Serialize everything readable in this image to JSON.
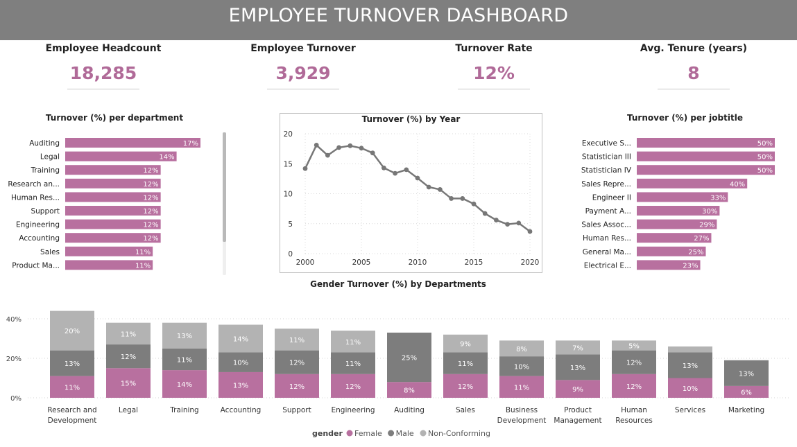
{
  "title": "EMPLOYEE TURNOVER DASHBOARD",
  "kpis": [
    {
      "label": "Employee Headcount",
      "value": "18,285"
    },
    {
      "label": "Employee Turnover",
      "value": "3,929"
    },
    {
      "label": "Turnover Rate",
      "value": "12%"
    },
    {
      "label": "Avg. Tenure (years)",
      "value": "8"
    }
  ],
  "colors": {
    "bar": "#b8709f",
    "female": "#b8709f",
    "male": "#7d7d7d",
    "nonconforming": "#b3b3b3",
    "line": "#777777",
    "kpi_value": "#b06a98",
    "banner": "#7f7f7f"
  },
  "chart_data": [
    {
      "type": "bar",
      "orientation": "horizontal",
      "title": "Turnover (%) per department",
      "categories": [
        "Auditing",
        "Legal",
        "Training",
        "Research an...",
        "Human Res...",
        "Support",
        "Engineering",
        "Accounting",
        "Sales",
        "Product Ma..."
      ],
      "values": [
        17,
        14,
        12,
        12,
        12,
        12,
        12,
        12,
        11,
        11
      ],
      "labels": [
        "17%",
        "14%",
        "12%",
        "12%",
        "12%",
        "12%",
        "12%",
        "12%",
        "11%",
        "11%"
      ]
    },
    {
      "type": "line",
      "title": "Turnover (%) by Year",
      "x": [
        2000,
        2001,
        2002,
        2003,
        2004,
        2005,
        2006,
        2007,
        2008,
        2009,
        2010,
        2011,
        2012,
        2013,
        2014,
        2015,
        2016,
        2017,
        2018,
        2019,
        2020
      ],
      "y": [
        14.2,
        18.1,
        16.4,
        17.7,
        18.0,
        17.6,
        16.8,
        14.3,
        13.4,
        14.0,
        12.6,
        11.1,
        10.7,
        9.2,
        9.2,
        8.3,
        6.7,
        5.6,
        4.9,
        5.1,
        3.7
      ],
      "xticks": [
        "2000",
        "2005",
        "2010",
        "2015",
        "2020"
      ],
      "yticks": [
        "0",
        "5",
        "10",
        "15",
        "20"
      ],
      "xlim": [
        2000,
        2020
      ],
      "ylim": [
        0,
        20
      ],
      "grid": true
    },
    {
      "type": "bar",
      "orientation": "horizontal",
      "title": "Turnover (%) per jobtitle",
      "categories": [
        "Executive S...",
        "Statistician III",
        "Statistician IV",
        "Sales Repre...",
        "Engineer II",
        "Payment A...",
        "Sales Assoc...",
        "Human Res...",
        "General Ma...",
        "Electrical E..."
      ],
      "values": [
        50,
        50,
        50,
        40,
        33,
        30,
        29,
        27,
        25,
        23
      ],
      "labels": [
        "50%",
        "50%",
        "50%",
        "40%",
        "33%",
        "30%",
        "29%",
        "27%",
        "25%",
        "23%"
      ]
    },
    {
      "type": "bar",
      "stacked": true,
      "title": "Gender Turnover (%) by Departments",
      "categories": [
        [
          "Research and",
          "Development"
        ],
        [
          "Legal"
        ],
        [
          "Training"
        ],
        [
          "Accounting"
        ],
        [
          "Support"
        ],
        [
          "Engineering"
        ],
        [
          "Auditing"
        ],
        [
          "Sales"
        ],
        [
          "Business",
          "Development"
        ],
        [
          "Product",
          "Management"
        ],
        [
          "Human",
          "Resources"
        ],
        [
          "Services"
        ],
        [
          "Marketing"
        ]
      ],
      "series": [
        {
          "name": "Female",
          "values": [
            11,
            15,
            14,
            13,
            12,
            12,
            8,
            12,
            11,
            9,
            12,
            10,
            6
          ],
          "labels": [
            "11%",
            "15%",
            "14%",
            "13%",
            "12%",
            "12%",
            "8%",
            "12%",
            "11%",
            "9%",
            "12%",
            "10%",
            "6%"
          ]
        },
        {
          "name": "Male",
          "values": [
            13,
            12,
            11,
            10,
            12,
            11,
            25,
            11,
            10,
            13,
            12,
            13,
            13
          ],
          "labels": [
            "13%",
            "12%",
            "11%",
            "10%",
            "12%",
            "11%",
            "25%",
            "11%",
            "10%",
            "13%",
            "12%",
            "13%",
            "13%"
          ]
        },
        {
          "name": "Non-Conforming",
          "values": [
            20,
            11,
            13,
            14,
            11,
            11,
            0,
            9,
            8,
            7,
            5,
            3,
            0
          ],
          "labels": [
            "20%",
            "11%",
            "13%",
            "14%",
            "11%",
            "11%",
            "",
            "9%",
            "8%",
            "7%",
            "5%",
            "",
            ""
          ]
        }
      ],
      "yticks": [
        "0%",
        "20%",
        "40%"
      ],
      "ylim": [
        0,
        45
      ],
      "legend_title": "gender",
      "legend_position": "bottom"
    }
  ]
}
